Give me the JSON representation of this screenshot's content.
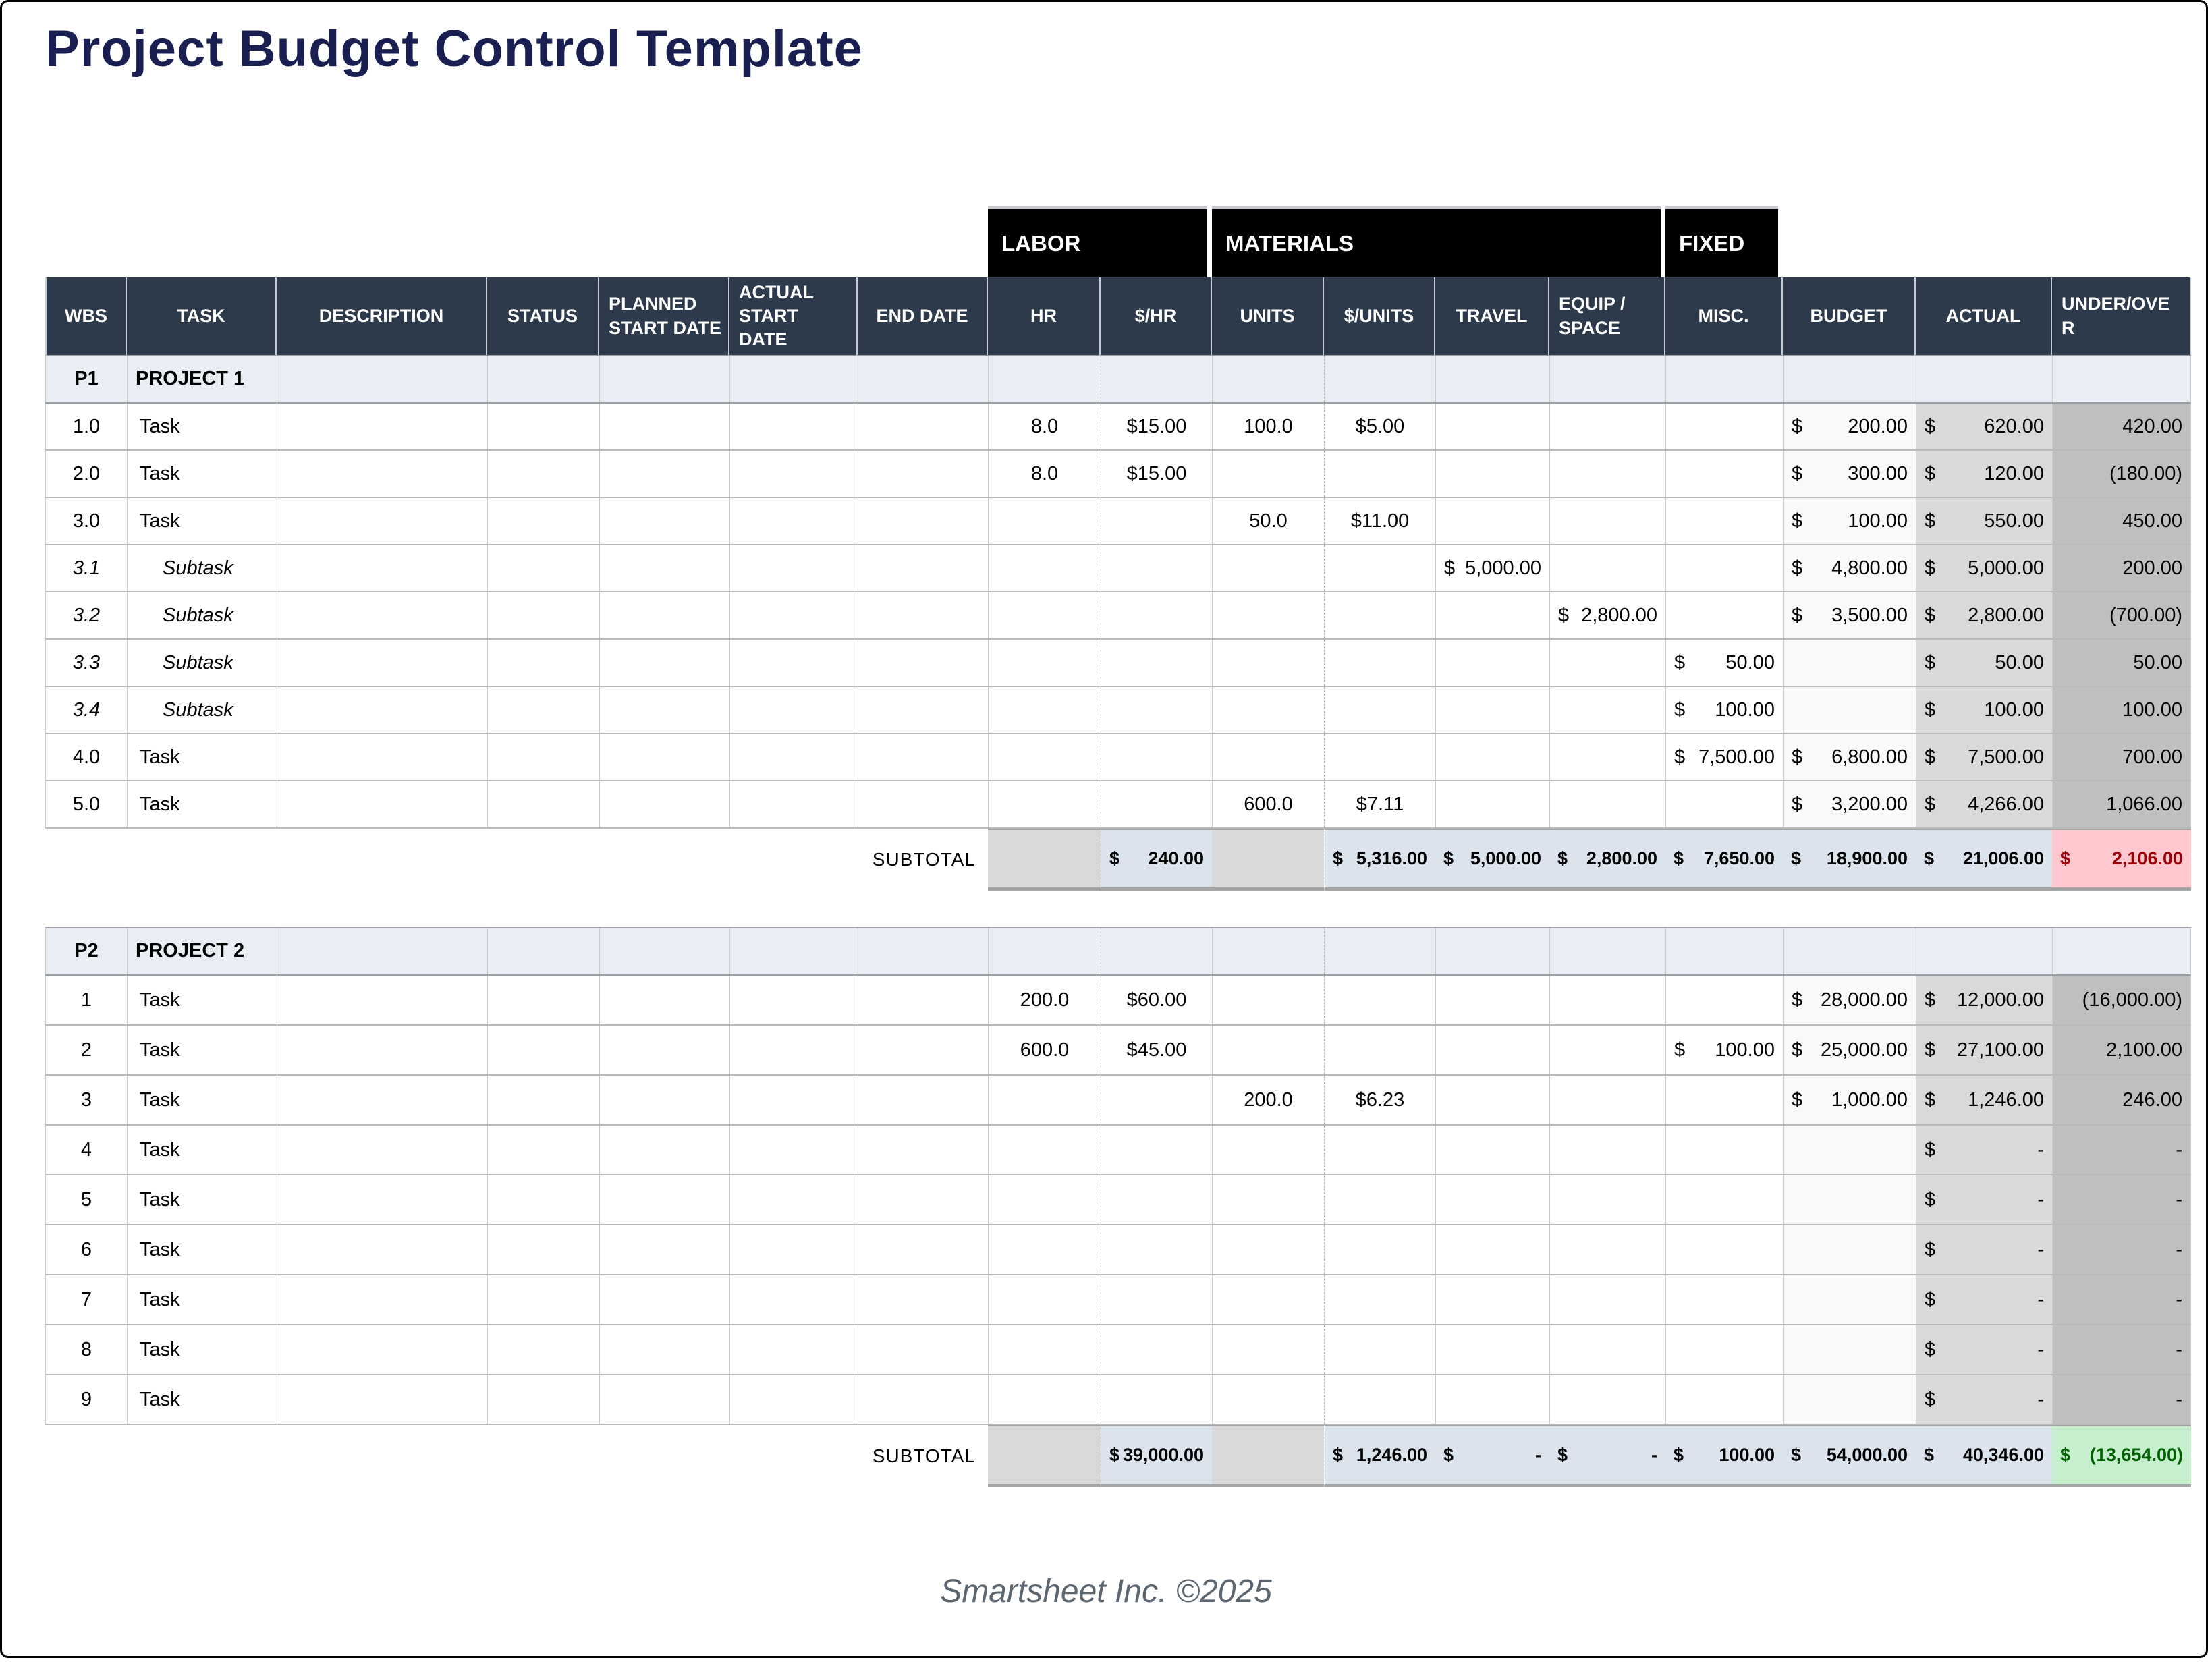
{
  "title": "Project Budget Control Template",
  "footer": "Smartsheet Inc. ©2025",
  "colors": {
    "title_color": "#1a1f51",
    "group_header_bg": "#000000",
    "column_header_bg": "#2d3a4c",
    "project_band_bg": "#e9edf4",
    "budget_column_bg": "#f8f9fa",
    "actual_column_bg": "#d9d9d9",
    "under_over_column_bg": "#bfbfbf",
    "subtotal_gray": "#d9d9d9",
    "subtotal_blue": "#dbe3ed",
    "over_budget_bg": "#ffc7ce",
    "over_budget_text": "#9c0006",
    "under_budget_bg": "#c6efce",
    "under_budget_text": "#006100"
  },
  "table": {
    "group_headers": [
      {
        "label": "LABOR",
        "start": 7,
        "span": 2
      },
      {
        "label": "MATERIALS",
        "start": 9,
        "span": 4
      },
      {
        "label": "FIXED",
        "start": 13,
        "span": 1
      }
    ],
    "columns": [
      "WBS",
      "TASK",
      "DESCRIPTION",
      "STATUS",
      "PLANNED START DATE",
      "ACTUAL START DATE",
      "END DATE",
      "HR",
      "$/HR",
      "UNITS",
      "$/UNITS",
      "TRAVEL",
      "EQUIP / SPACE",
      "MISC.",
      "BUDGET",
      "ACTUAL",
      "UNDER/OVER"
    ],
    "sections": [
      {
        "code": "P1",
        "name": "PROJECT 1",
        "rows": [
          {
            "wbs": "1.0",
            "task": "Task",
            "sub": false,
            "hr": "8.0",
            "rate": "$15.00",
            "units": "100.0",
            "unit_cost": "$5.00",
            "travel": "",
            "equip": "",
            "misc": "",
            "budget": "$ 200.00",
            "actual": "$ 620.00",
            "under_over": "420.00"
          },
          {
            "wbs": "2.0",
            "task": "Task",
            "sub": false,
            "hr": "8.0",
            "rate": "$15.00",
            "units": "",
            "unit_cost": "",
            "travel": "",
            "equip": "",
            "misc": "",
            "budget": "$ 300.00",
            "actual": "$ 120.00",
            "under_over": "(180.00)"
          },
          {
            "wbs": "3.0",
            "task": "Task",
            "sub": false,
            "hr": "",
            "rate": "",
            "units": "50.0",
            "unit_cost": "$11.00",
            "travel": "",
            "equip": "",
            "misc": "",
            "budget": "$ 100.00",
            "actual": "$ 550.00",
            "under_over": "450.00"
          },
          {
            "wbs": "3.1",
            "task": "Subtask",
            "sub": true,
            "hr": "",
            "rate": "",
            "units": "",
            "unit_cost": "",
            "travel": "$ 5,000.00",
            "equip": "",
            "misc": "",
            "budget": "$ 4,800.00",
            "actual": "$ 5,000.00",
            "under_over": "200.00"
          },
          {
            "wbs": "3.2",
            "task": "Subtask",
            "sub": true,
            "hr": "",
            "rate": "",
            "units": "",
            "unit_cost": "",
            "travel": "",
            "equip": "$ 2,800.00",
            "misc": "",
            "budget": "$ 3,500.00",
            "actual": "$ 2,800.00",
            "under_over": "(700.00)"
          },
          {
            "wbs": "3.3",
            "task": "Subtask",
            "sub": true,
            "hr": "",
            "rate": "",
            "units": "",
            "unit_cost": "",
            "travel": "",
            "equip": "",
            "misc": "$ 50.00",
            "budget": "",
            "actual": "$ 50.00",
            "under_over": "50.00"
          },
          {
            "wbs": "3.4",
            "task": "Subtask",
            "sub": true,
            "hr": "",
            "rate": "",
            "units": "",
            "unit_cost": "",
            "travel": "",
            "equip": "",
            "misc": "$ 100.00",
            "budget": "",
            "actual": "$ 100.00",
            "under_over": "100.00"
          },
          {
            "wbs": "4.0",
            "task": "Task",
            "sub": false,
            "hr": "",
            "rate": "",
            "units": "",
            "unit_cost": "",
            "travel": "",
            "equip": "",
            "misc": "$ 7,500.00",
            "budget": "$ 6,800.00",
            "actual": "$ 7,500.00",
            "under_over": "700.00"
          },
          {
            "wbs": "5.0",
            "task": "Task",
            "sub": false,
            "hr": "",
            "rate": "",
            "units": "600.0",
            "unit_cost": "$7.11",
            "travel": "",
            "equip": "",
            "misc": "",
            "budget": "$ 3,200.00",
            "actual": "$ 4,266.00",
            "under_over": "1,066.00"
          }
        ],
        "subtotal": {
          "label": "SUBTOTAL",
          "hr": "",
          "rate": "$ 240.00",
          "units": "",
          "unit_cost": "$ 5,316.00",
          "travel": "$ 5,000.00",
          "equip": "$ 2,800.00",
          "misc": "$ 7,650.00",
          "budget": "$ 18,900.00",
          "actual": "$ 21,006.00",
          "under_over": "$ 2,106.00",
          "under_over_state": "red"
        }
      },
      {
        "code": "P2",
        "name": "PROJECT 2",
        "rows": [
          {
            "wbs": "1",
            "task": "Task",
            "sub": false,
            "hr": "200.0",
            "rate": "$60.00",
            "units": "",
            "unit_cost": "",
            "travel": "",
            "equip": "",
            "misc": "",
            "budget": "$ 28,000.00",
            "actual": "$ 12,000.00",
            "under_over": "(16,000.00)"
          },
          {
            "wbs": "2",
            "task": "Task",
            "sub": false,
            "hr": "600.0",
            "rate": "$45.00",
            "units": "",
            "unit_cost": "",
            "travel": "",
            "equip": "",
            "misc": "$ 100.00",
            "budget": "$ 25,000.00",
            "actual": "$ 27,100.00",
            "under_over": "2,100.00"
          },
          {
            "wbs": "3",
            "task": "Task",
            "sub": false,
            "hr": "",
            "rate": "",
            "units": "200.0",
            "unit_cost": "$6.23",
            "travel": "",
            "equip": "",
            "misc": "",
            "budget": "$ 1,000.00",
            "actual": "$ 1,246.00",
            "under_over": "246.00"
          },
          {
            "wbs": "4",
            "task": "Task",
            "sub": false,
            "hr": "",
            "rate": "",
            "units": "",
            "unit_cost": "",
            "travel": "",
            "equip": "",
            "misc": "",
            "budget": "",
            "actual": "$ -",
            "under_over": "-"
          },
          {
            "wbs": "5",
            "task": "Task",
            "sub": false,
            "hr": "",
            "rate": "",
            "units": "",
            "unit_cost": "",
            "travel": "",
            "equip": "",
            "misc": "",
            "budget": "",
            "actual": "$ -",
            "under_over": "-"
          },
          {
            "wbs": "6",
            "task": "Task",
            "sub": false,
            "hr": "",
            "rate": "",
            "units": "",
            "unit_cost": "",
            "travel": "",
            "equip": "",
            "misc": "",
            "budget": "",
            "actual": "$ -",
            "under_over": "-"
          },
          {
            "wbs": "7",
            "task": "Task",
            "sub": false,
            "hr": "",
            "rate": "",
            "units": "",
            "unit_cost": "",
            "travel": "",
            "equip": "",
            "misc": "",
            "budget": "",
            "actual": "$ -",
            "under_over": "-"
          },
          {
            "wbs": "8",
            "task": "Task",
            "sub": false,
            "hr": "",
            "rate": "",
            "units": "",
            "unit_cost": "",
            "travel": "",
            "equip": "",
            "misc": "",
            "budget": "",
            "actual": "$ -",
            "under_over": "-"
          },
          {
            "wbs": "9",
            "task": "Task",
            "sub": false,
            "hr": "",
            "rate": "",
            "units": "",
            "unit_cost": "",
            "travel": "",
            "equip": "",
            "misc": "",
            "budget": "",
            "actual": "$ -",
            "under_over": "-"
          }
        ],
        "subtotal": {
          "label": "SUBTOTAL",
          "hr": "",
          "rate": "$ 39,000.00",
          "units": "",
          "unit_cost": "$ 1,246.00",
          "travel": "$ -",
          "equip": "$ -",
          "misc": "$ 100.00",
          "budget": "$ 54,000.00",
          "actual": "$ 40,346.00",
          "under_over": "$ (13,654.00)",
          "under_over_state": "green"
        }
      }
    ]
  }
}
